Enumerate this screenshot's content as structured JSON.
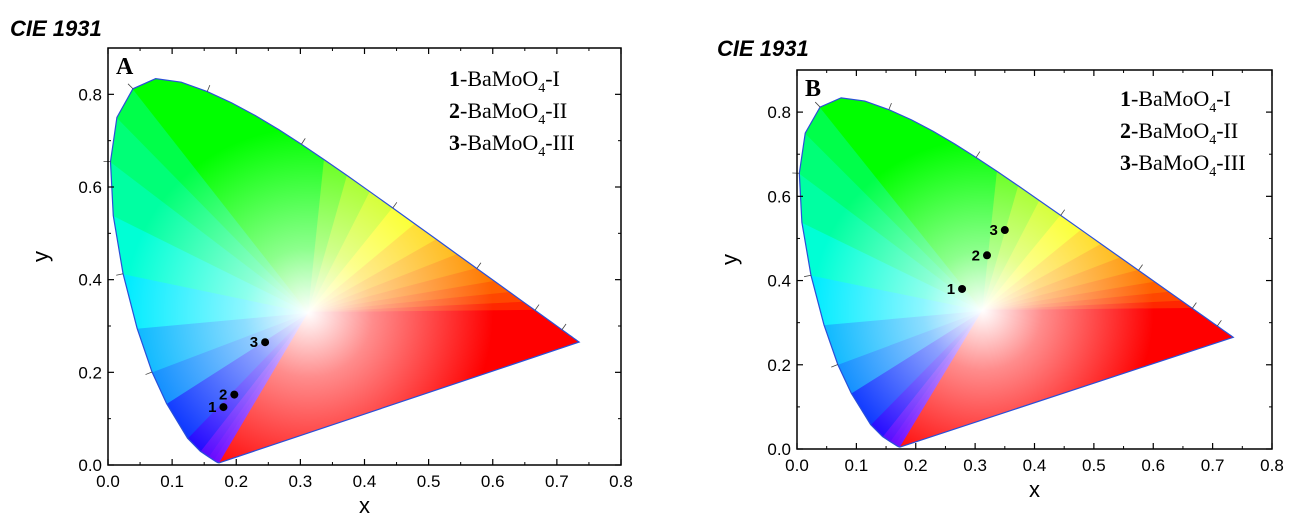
{
  "chart_data": [
    {
      "type": "scatter",
      "title": "CIE 1931",
      "panel_label": "A",
      "xlabel": "x",
      "ylabel": "y",
      "xlim": [
        0.0,
        0.8
      ],
      "ylim": [
        0.0,
        0.9
      ],
      "xticks": [
        "0.0",
        "0.1",
        "0.2",
        "0.3",
        "0.4",
        "0.5",
        "0.6",
        "0.7",
        "0.8"
      ],
      "yticks": [
        "0.0",
        "0.2",
        "0.4",
        "0.6",
        "0.8"
      ],
      "legend_position": "top-right",
      "legend": [
        {
          "num": "1",
          "pre": "-BaMoO",
          "sub": "4",
          "post": "-I"
        },
        {
          "num": "2",
          "pre": "-BaMoO",
          "sub": "4",
          "post": "-II"
        },
        {
          "num": "3",
          "pre": "-BaMoO",
          "sub": "4",
          "post": "-III"
        }
      ],
      "points": [
        {
          "label": "1",
          "x": 0.18,
          "y": 0.125
        },
        {
          "label": "2",
          "x": 0.197,
          "y": 0.152
        },
        {
          "label": "3",
          "x": 0.245,
          "y": 0.265
        }
      ]
    },
    {
      "type": "scatter",
      "title": "CIE 1931",
      "panel_label": "B",
      "xlabel": "x",
      "ylabel": "y",
      "xlim": [
        0.0,
        0.8
      ],
      "ylim": [
        0.0,
        0.9
      ],
      "xticks": [
        "0.0",
        "0.1",
        "0.2",
        "0.3",
        "0.4",
        "0.5",
        "0.6",
        "0.7",
        "0.8"
      ],
      "yticks": [
        "0.0",
        "0.2",
        "0.4",
        "0.6",
        "0.8"
      ],
      "legend_position": "top-right",
      "legend": [
        {
          "num": "1",
          "pre": "-BaMoO",
          "sub": "4",
          "post": "-I"
        },
        {
          "num": "2",
          "pre": "-BaMoO",
          "sub": "4",
          "post": "-II"
        },
        {
          "num": "3",
          "pre": "-BaMoO",
          "sub": "4",
          "post": "-III"
        }
      ],
      "points": [
        {
          "label": "1",
          "x": 0.278,
          "y": 0.38
        },
        {
          "label": "2",
          "x": 0.32,
          "y": 0.46
        },
        {
          "label": "3",
          "x": 0.35,
          "y": 0.52
        }
      ]
    }
  ]
}
